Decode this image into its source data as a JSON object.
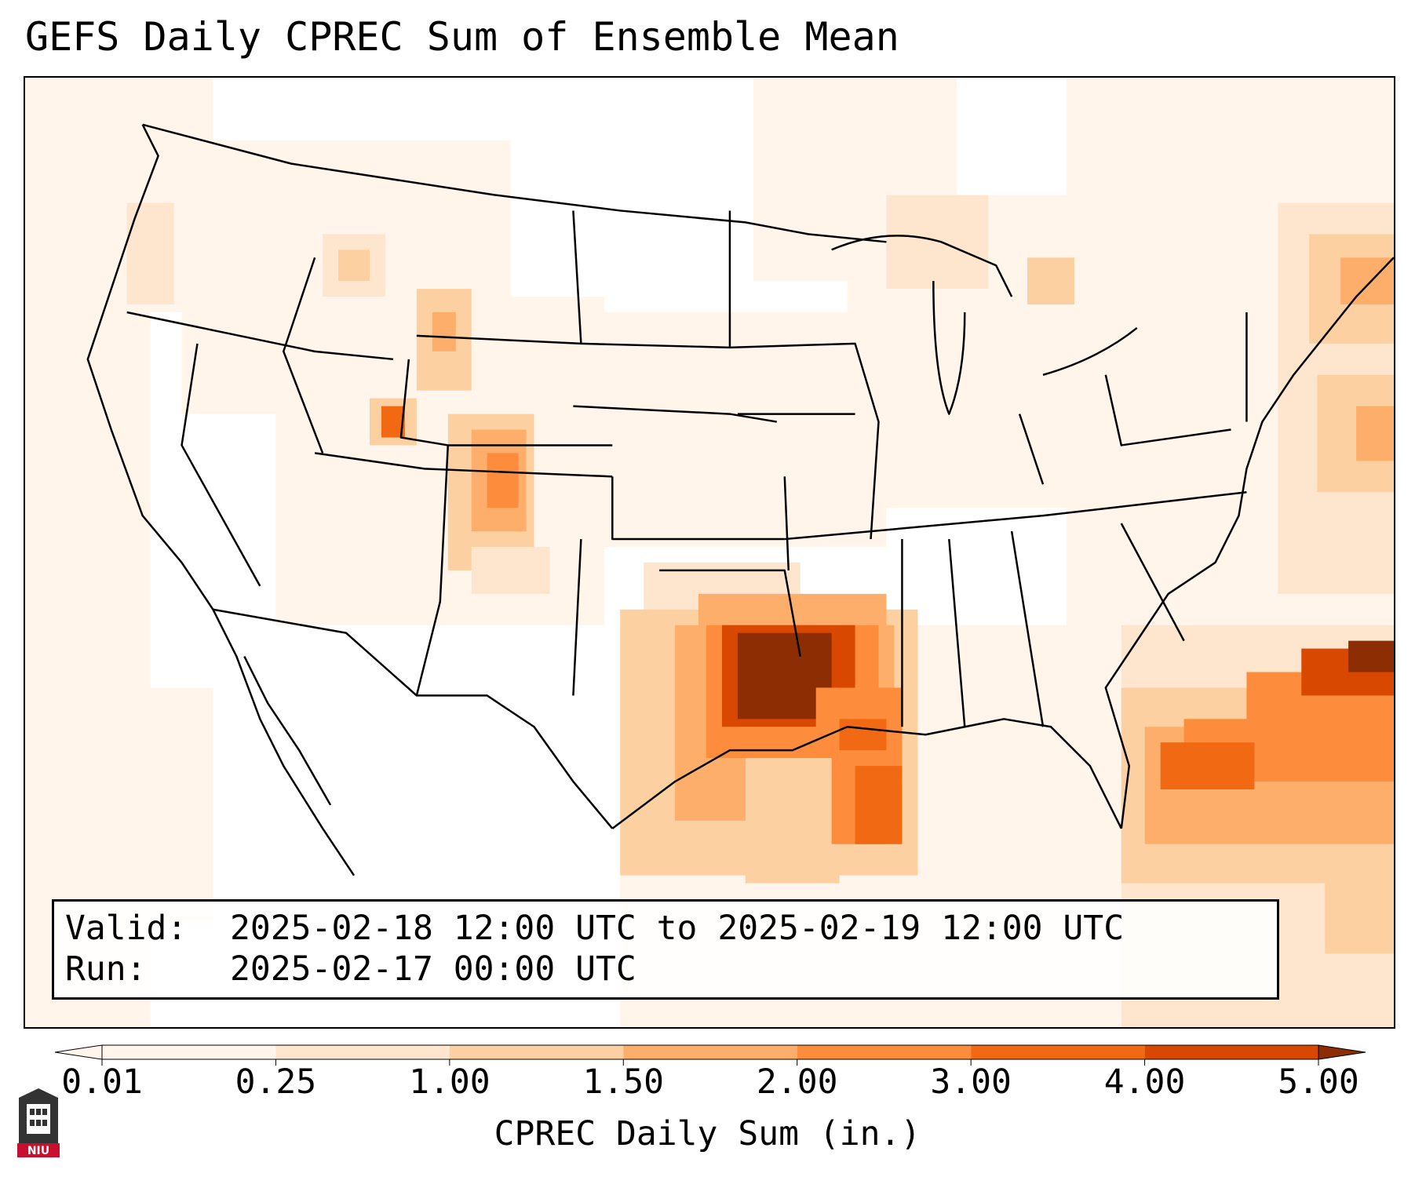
{
  "title": "GEFS Daily CPREC Sum of Ensemble Mean",
  "info": {
    "valid_label": "Valid:",
    "valid_value": "2025-02-18 12:00 UTC to 2025-02-19 12:00 UTC",
    "run_label": "Run:",
    "run_value": "2025-02-17 00:00 UTC"
  },
  "colorbar": {
    "label": "CPREC Daily Sum (in.)",
    "ticks": [
      "0.01",
      "0.25",
      "1.00",
      "1.50",
      "2.00",
      "3.00",
      "4.00",
      "5.00"
    ],
    "colors": [
      "#fff5eb",
      "#fee6ce",
      "#fdd0a2",
      "#fdae6b",
      "#fd8d3c",
      "#f16913",
      "#d94801",
      "#8c2d04"
    ],
    "extend": "both"
  },
  "logo": {
    "text": "NIU",
    "icon": "university-seal-icon"
  }
}
